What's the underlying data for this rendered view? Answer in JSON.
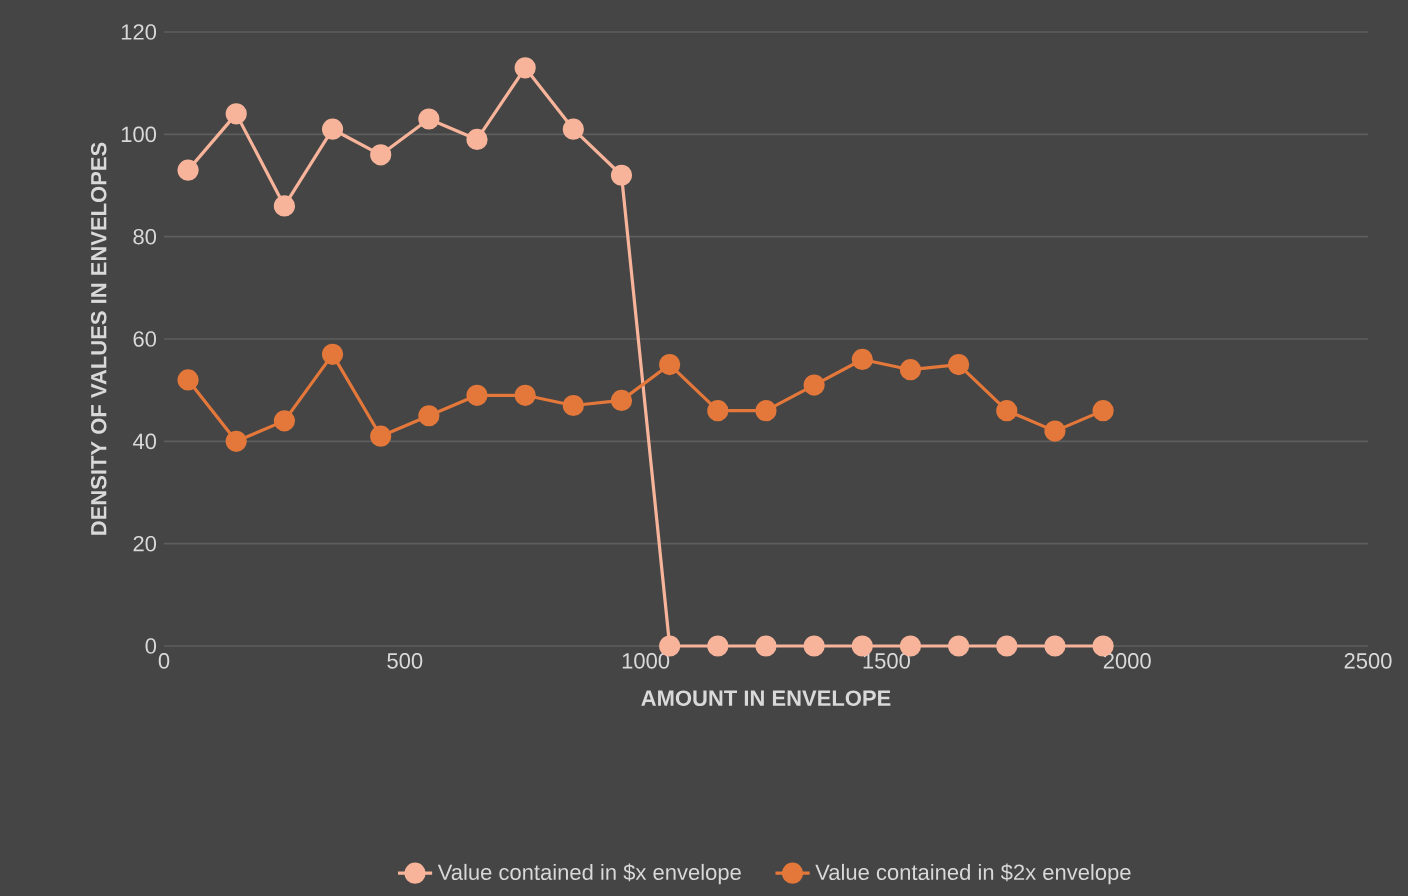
{
  "chart_data": {
    "type": "line",
    "xlabel": "AMOUNT IN ENVELOPE",
    "ylabel": "DENSITY OF VALUES IN ENVELOPES",
    "x": [
      50,
      150,
      250,
      350,
      450,
      550,
      650,
      750,
      850,
      950,
      1050,
      1150,
      1250,
      1350,
      1450,
      1550,
      1650,
      1750,
      1850,
      1950
    ],
    "series": [
      {
        "name": "Value contained in $x envelope",
        "color": "#f8b49a",
        "values": [
          93,
          104,
          86,
          101,
          96,
          103,
          99,
          113,
          101,
          92,
          0,
          0,
          0,
          0,
          0,
          0,
          0,
          0,
          0,
          0
        ]
      },
      {
        "name": "Value contained in $2x envelope",
        "color": "#e4773a",
        "values": [
          52,
          40,
          44,
          57,
          41,
          45,
          49,
          49,
          47,
          48,
          55,
          46,
          46,
          51,
          56,
          54,
          55,
          46,
          42,
          46
        ]
      }
    ],
    "xlim": [
      0,
      2500
    ],
    "ylim": [
      0,
      120
    ],
    "xticks": [
      0,
      500,
      1000,
      1500,
      2000,
      2500
    ],
    "yticks": [
      0,
      20,
      40,
      60,
      80,
      100,
      120
    ],
    "grid": "y",
    "legend": "bottom",
    "marker": "circle",
    "line_style": "solid"
  }
}
